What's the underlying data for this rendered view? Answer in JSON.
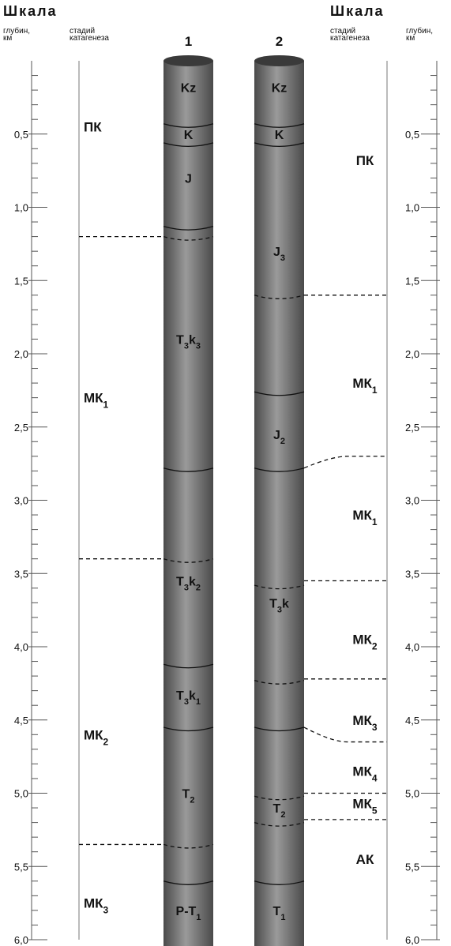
{
  "scales": {
    "left": {
      "title": "Шкала",
      "depth_caption": [
        "глубин,",
        "км"
      ],
      "stage_caption": [
        "стадий",
        "катагенеза"
      ]
    },
    "right": {
      "title": "Шкала",
      "depth_caption": [
        "глубин,",
        "км"
      ],
      "stage_caption": [
        "стадий",
        "катагенеза"
      ]
    }
  },
  "depth": {
    "range": [
      0,
      6
    ],
    "ticks": [
      {
        "value": 0.5,
        "label": "0,5"
      },
      {
        "value": 1,
        "label": "1,0"
      },
      {
        "value": 1.5,
        "label": "1,5"
      },
      {
        "value": 2,
        "label": "2,0"
      },
      {
        "value": 2.5,
        "label": "2,5"
      },
      {
        "value": 3,
        "label": "3,0"
      },
      {
        "value": 3.5,
        "label": "3,5"
      },
      {
        "value": 4,
        "label": "4,0"
      },
      {
        "value": 4.5,
        "label": "4,5"
      },
      {
        "value": 5,
        "label": "5,0"
      },
      {
        "value": 5.5,
        "label": "5,5"
      },
      {
        "value": 6,
        "label": "6,0"
      }
    ]
  },
  "wells": [
    {
      "label": "1",
      "layers": [
        {
          "name": [
            {
              "text": "Kz"
            }
          ],
          "depth": 0.18
        },
        {
          "name": [
            {
              "text": "K"
            }
          ],
          "depth": 0.5
        },
        {
          "name": [
            {
              "text": "J"
            }
          ],
          "depth": 0.8
        },
        {
          "name": [
            {
              "text": "T",
              "sub": "3"
            },
            {
              "text": "k",
              "sub": "3"
            }
          ],
          "depth": 1.9
        },
        {
          "name": [
            {
              "text": "T",
              "sub": "3"
            },
            {
              "text": "k",
              "sub": "2"
            }
          ],
          "depth": 3.55
        },
        {
          "name": [
            {
              "text": "T",
              "sub": "3"
            },
            {
              "text": "k",
              "sub": "1"
            }
          ],
          "depth": 4.33
        },
        {
          "name": [
            {
              "text": "T",
              "sub": "2"
            }
          ],
          "depth": 5.0
        },
        {
          "name": [
            {
              "text": "P-T",
              "sub": "1"
            }
          ],
          "depth": 5.8
        }
      ],
      "boundaries": [
        {
          "depth": 0.43,
          "style": "solid"
        },
        {
          "depth": 0.56,
          "style": "solid"
        },
        {
          "depth": 1.13,
          "style": "solid"
        },
        {
          "depth": 1.2,
          "style": "dashed"
        },
        {
          "depth": 2.78,
          "style": "solid"
        },
        {
          "depth": 3.4,
          "style": "dashed"
        },
        {
          "depth": 4.12,
          "style": "solid"
        },
        {
          "depth": 4.55,
          "style": "solid"
        },
        {
          "depth": 5.35,
          "style": "dashed"
        },
        {
          "depth": 5.6,
          "style": "solid"
        }
      ]
    },
    {
      "label": "2",
      "layers": [
        {
          "name": [
            {
              "text": "Kz"
            }
          ],
          "depth": 0.18
        },
        {
          "name": [
            {
              "text": "K"
            }
          ],
          "depth": 0.5
        },
        {
          "name": [
            {
              "text": "J",
              "sub": "3"
            }
          ],
          "depth": 1.3
        },
        {
          "name": [
            {
              "text": "J",
              "sub": "2"
            }
          ],
          "depth": 2.55
        },
        {
          "name": [
            {
              "text": "T",
              "sub": "3"
            },
            {
              "text": "k"
            }
          ],
          "depth": 3.7
        },
        {
          "name": [
            {
              "text": "T",
              "sub": "2"
            }
          ],
          "depth": 5.1
        },
        {
          "name": [
            {
              "text": "T",
              "sub": "1"
            }
          ],
          "depth": 5.8
        }
      ],
      "boundaries": [
        {
          "depth": 0.43,
          "style": "solid"
        },
        {
          "depth": 0.56,
          "style": "solid"
        },
        {
          "depth": 1.6,
          "style": "dashed"
        },
        {
          "depth": 2.26,
          "style": "solid"
        },
        {
          "depth": 2.78,
          "style": "solid"
        },
        {
          "depth": 3.58,
          "style": "dashed"
        },
        {
          "depth": 4.23,
          "style": "dashed"
        },
        {
          "depth": 4.55,
          "style": "solid"
        },
        {
          "depth": 5.02,
          "style": "dashed"
        },
        {
          "depth": 5.2,
          "style": "dashed"
        },
        {
          "depth": 5.6,
          "style": "solid"
        }
      ]
    }
  ],
  "stages": {
    "left": [
      {
        "name": "ПК",
        "depth": 0.45
      },
      {
        "name": "МК",
        "sub": "1",
        "depth": 2.3
      },
      {
        "name": "МК",
        "sub": "2",
        "depth": 4.6
      },
      {
        "name": "МК",
        "sub": "3",
        "depth": 5.75
      }
    ],
    "left_boundaries": [
      {
        "depth": 1.2
      },
      {
        "depth": 3.4
      },
      {
        "depth": 5.35
      }
    ],
    "right": [
      {
        "name": "ПК",
        "depth": 0.68
      },
      {
        "name": "МК",
        "sub": "1",
        "depth": 2.2
      },
      {
        "name": "МК",
        "sub": "1",
        "depth": 3.1
      },
      {
        "name": "МК",
        "sub": "2",
        "depth": 3.95
      },
      {
        "name": "МК",
        "sub": "3",
        "depth": 4.5
      },
      {
        "name": "МК",
        "sub": "4",
        "depth": 4.85
      },
      {
        "name": "МК",
        "sub": "5",
        "depth": 5.07
      },
      {
        "name": "АК",
        "depth": 5.45
      }
    ],
    "right_boundaries": [
      {
        "depth": 1.6
      },
      {
        "depth": 2.7,
        "from_depth": 2.78
      },
      {
        "depth": 3.55
      },
      {
        "depth": 4.22
      },
      {
        "depth": 4.65,
        "from_depth": 4.55
      },
      {
        "depth": 5.0
      },
      {
        "depth": 5.18
      }
    ]
  }
}
